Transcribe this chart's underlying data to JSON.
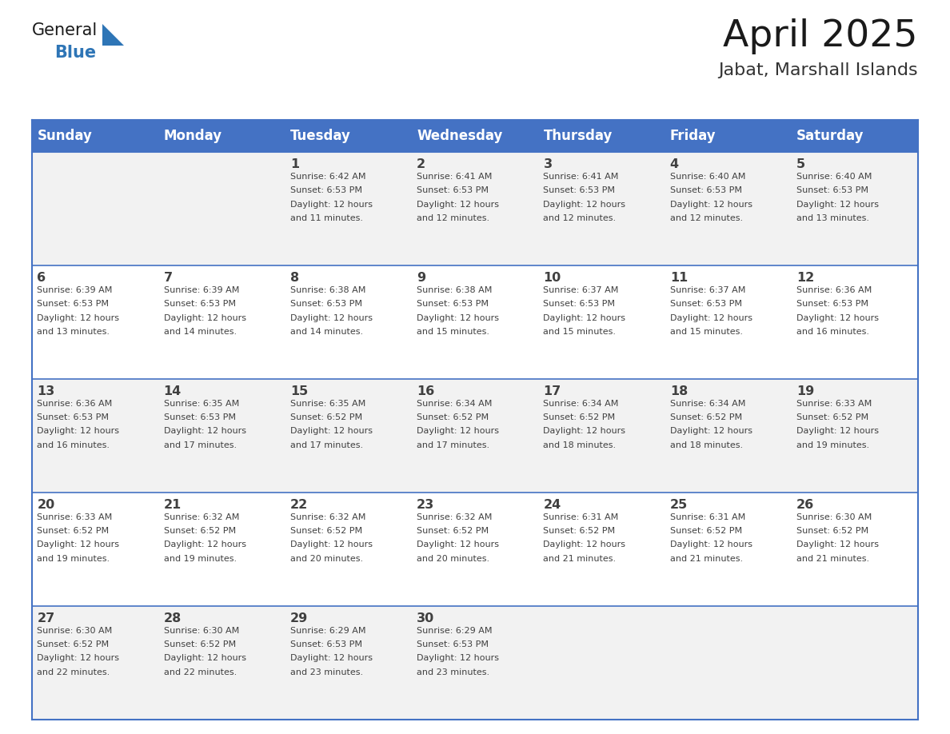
{
  "title": "April 2025",
  "subtitle": "Jabat, Marshall Islands",
  "header_bg_color": "#4472C4",
  "header_text_color": "#FFFFFF",
  "day_names": [
    "Sunday",
    "Monday",
    "Tuesday",
    "Wednesday",
    "Thursday",
    "Friday",
    "Saturday"
  ],
  "row_bg_colors": [
    "#F2F2F2",
    "#FFFFFF"
  ],
  "border_color": "#4472C4",
  "text_color": "#404040",
  "title_color": "#1a1a1a",
  "subtitle_color": "#333333",
  "logo_general_color": "#1a1a1a",
  "logo_blue_color": "#2E75B6",
  "calendar": [
    [
      {
        "day": "",
        "sunrise": "",
        "sunset": "",
        "daylight_min": ""
      },
      {
        "day": "",
        "sunrise": "",
        "sunset": "",
        "daylight_min": ""
      },
      {
        "day": "1",
        "sunrise": "6:42 AM",
        "sunset": "6:53 PM",
        "daylight_min": "11 minutes."
      },
      {
        "day": "2",
        "sunrise": "6:41 AM",
        "sunset": "6:53 PM",
        "daylight_min": "12 minutes."
      },
      {
        "day": "3",
        "sunrise": "6:41 AM",
        "sunset": "6:53 PM",
        "daylight_min": "12 minutes."
      },
      {
        "day": "4",
        "sunrise": "6:40 AM",
        "sunset": "6:53 PM",
        "daylight_min": "12 minutes."
      },
      {
        "day": "5",
        "sunrise": "6:40 AM",
        "sunset": "6:53 PM",
        "daylight_min": "13 minutes."
      }
    ],
    [
      {
        "day": "6",
        "sunrise": "6:39 AM",
        "sunset": "6:53 PM",
        "daylight_min": "13 minutes."
      },
      {
        "day": "7",
        "sunrise": "6:39 AM",
        "sunset": "6:53 PM",
        "daylight_min": "14 minutes."
      },
      {
        "day": "8",
        "sunrise": "6:38 AM",
        "sunset": "6:53 PM",
        "daylight_min": "14 minutes."
      },
      {
        "day": "9",
        "sunrise": "6:38 AM",
        "sunset": "6:53 PM",
        "daylight_min": "15 minutes."
      },
      {
        "day": "10",
        "sunrise": "6:37 AM",
        "sunset": "6:53 PM",
        "daylight_min": "15 minutes."
      },
      {
        "day": "11",
        "sunrise": "6:37 AM",
        "sunset": "6:53 PM",
        "daylight_min": "15 minutes."
      },
      {
        "day": "12",
        "sunrise": "6:36 AM",
        "sunset": "6:53 PM",
        "daylight_min": "16 minutes."
      }
    ],
    [
      {
        "day": "13",
        "sunrise": "6:36 AM",
        "sunset": "6:53 PM",
        "daylight_min": "16 minutes."
      },
      {
        "day": "14",
        "sunrise": "6:35 AM",
        "sunset": "6:53 PM",
        "daylight_min": "17 minutes."
      },
      {
        "day": "15",
        "sunrise": "6:35 AM",
        "sunset": "6:52 PM",
        "daylight_min": "17 minutes."
      },
      {
        "day": "16",
        "sunrise": "6:34 AM",
        "sunset": "6:52 PM",
        "daylight_min": "17 minutes."
      },
      {
        "day": "17",
        "sunrise": "6:34 AM",
        "sunset": "6:52 PM",
        "daylight_min": "18 minutes."
      },
      {
        "day": "18",
        "sunrise": "6:34 AM",
        "sunset": "6:52 PM",
        "daylight_min": "18 minutes."
      },
      {
        "day": "19",
        "sunrise": "6:33 AM",
        "sunset": "6:52 PM",
        "daylight_min": "19 minutes."
      }
    ],
    [
      {
        "day": "20",
        "sunrise": "6:33 AM",
        "sunset": "6:52 PM",
        "daylight_min": "19 minutes."
      },
      {
        "day": "21",
        "sunrise": "6:32 AM",
        "sunset": "6:52 PM",
        "daylight_min": "19 minutes."
      },
      {
        "day": "22",
        "sunrise": "6:32 AM",
        "sunset": "6:52 PM",
        "daylight_min": "20 minutes."
      },
      {
        "day": "23",
        "sunrise": "6:32 AM",
        "sunset": "6:52 PM",
        "daylight_min": "20 minutes."
      },
      {
        "day": "24",
        "sunrise": "6:31 AM",
        "sunset": "6:52 PM",
        "daylight_min": "21 minutes."
      },
      {
        "day": "25",
        "sunrise": "6:31 AM",
        "sunset": "6:52 PM",
        "daylight_min": "21 minutes."
      },
      {
        "day": "26",
        "sunrise": "6:30 AM",
        "sunset": "6:52 PM",
        "daylight_min": "21 minutes."
      }
    ],
    [
      {
        "day": "27",
        "sunrise": "6:30 AM",
        "sunset": "6:52 PM",
        "daylight_min": "22 minutes."
      },
      {
        "day": "28",
        "sunrise": "6:30 AM",
        "sunset": "6:52 PM",
        "daylight_min": "22 minutes."
      },
      {
        "day": "29",
        "sunrise": "6:29 AM",
        "sunset": "6:53 PM",
        "daylight_min": "23 minutes."
      },
      {
        "day": "30",
        "sunrise": "6:29 AM",
        "sunset": "6:53 PM",
        "daylight_min": "23 minutes."
      },
      {
        "day": "",
        "sunrise": "",
        "sunset": "",
        "daylight_min": ""
      },
      {
        "day": "",
        "sunrise": "",
        "sunset": "",
        "daylight_min": ""
      },
      {
        "day": "",
        "sunrise": "",
        "sunset": "",
        "daylight_min": ""
      }
    ]
  ]
}
